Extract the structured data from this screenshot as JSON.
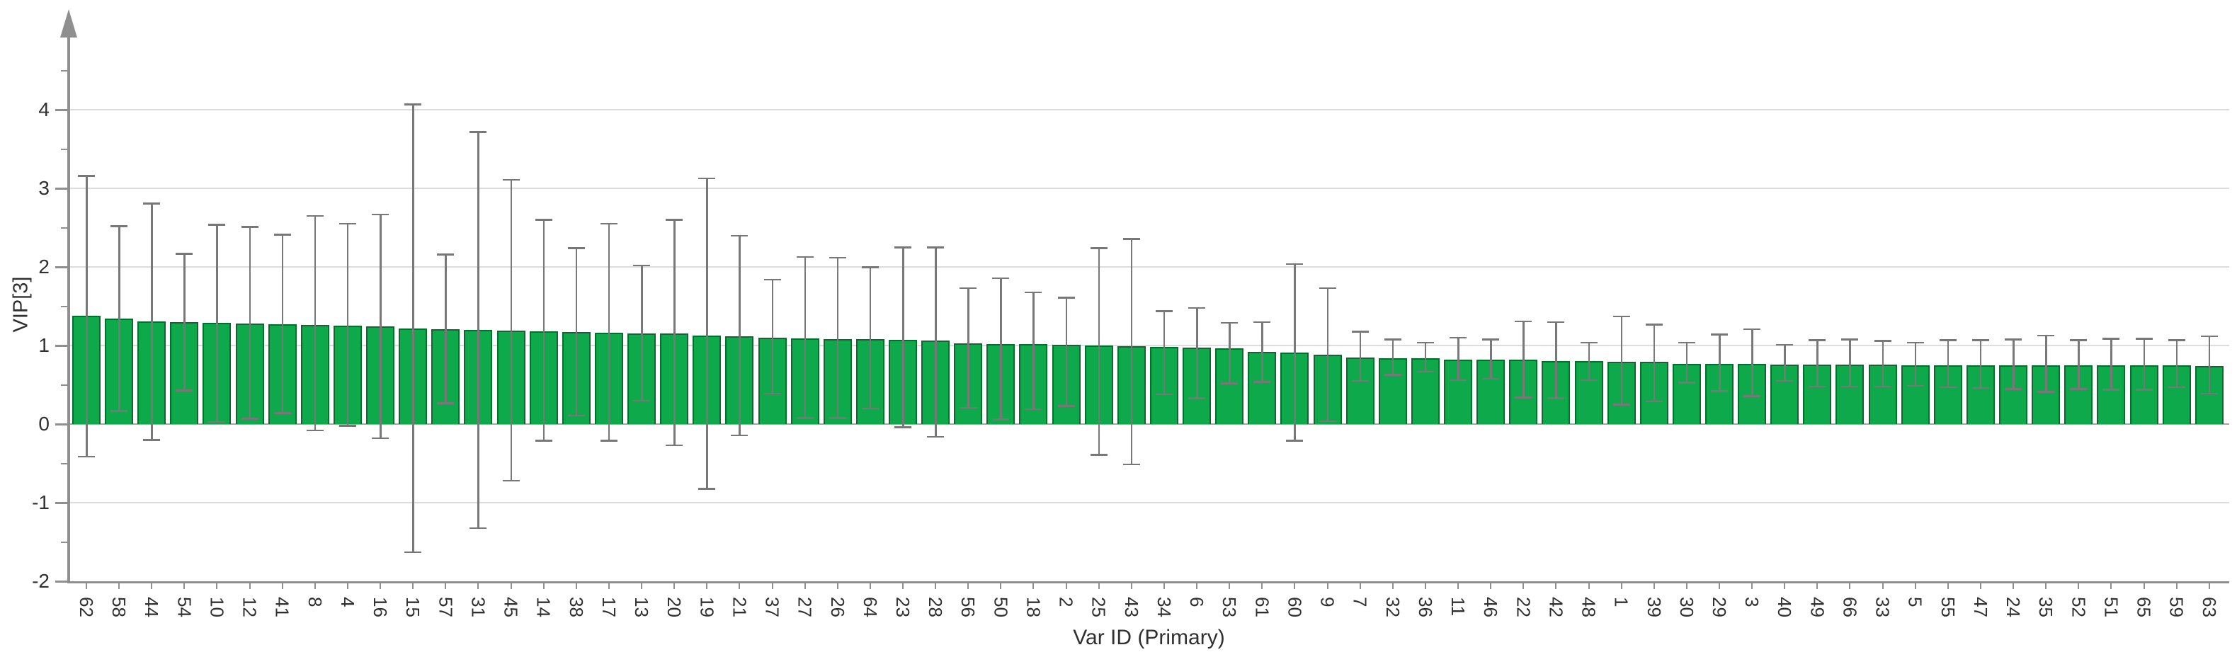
{
  "chart_data": {
    "type": "bar",
    "title": "",
    "xlabel": "Var ID (Primary)",
    "ylabel": "VIP[3]",
    "ylim": [
      -2,
      4.7
    ],
    "yticks": [
      4,
      3,
      2,
      1,
      0,
      -1,
      -2
    ],
    "yticks_minor": [
      4.5,
      3.5,
      2.5,
      1.5,
      0.5,
      -0.5,
      -1.5
    ],
    "grid": "horizontal major gridlines only",
    "legend_position": "none",
    "bar_orientation": "vertical",
    "error_bars": "asymmetric confidence intervals (jack-knife style)",
    "categories": [
      "62",
      "58",
      "44",
      "54",
      "10",
      "12",
      "41",
      "8",
      "4",
      "16",
      "15",
      "57",
      "31",
      "45",
      "14",
      "38",
      "17",
      "13",
      "20",
      "19",
      "21",
      "37",
      "27",
      "26",
      "64",
      "23",
      "28",
      "56",
      "50",
      "18",
      "2",
      "25",
      "43",
      "34",
      "6",
      "53",
      "61",
      "60",
      "9",
      "7",
      "32",
      "36",
      "11",
      "46",
      "22",
      "42",
      "48",
      "1",
      "39",
      "30",
      "29",
      "3",
      "40",
      "49",
      "66",
      "33",
      "5",
      "55",
      "47",
      "24",
      "35",
      "52",
      "51",
      "65",
      "59",
      "63"
    ],
    "series": [
      {
        "name": "VIP[3]",
        "values": [
          1.38,
          1.34,
          1.31,
          1.3,
          1.29,
          1.28,
          1.27,
          1.26,
          1.25,
          1.24,
          1.22,
          1.21,
          1.2,
          1.19,
          1.18,
          1.17,
          1.16,
          1.15,
          1.15,
          1.13,
          1.12,
          1.1,
          1.09,
          1.08,
          1.08,
          1.07,
          1.06,
          1.03,
          1.02,
          1.02,
          1.01,
          1.0,
          0.99,
          0.98,
          0.97,
          0.96,
          0.92,
          0.91,
          0.88,
          0.85,
          0.84,
          0.84,
          0.82,
          0.82,
          0.82,
          0.8,
          0.8,
          0.79,
          0.79,
          0.77,
          0.77,
          0.77,
          0.76,
          0.76,
          0.76,
          0.76,
          0.75,
          0.75,
          0.75,
          0.75,
          0.75,
          0.75,
          0.75,
          0.75,
          0.75,
          0.74
        ]
      },
      {
        "name": "error_low",
        "values": [
          -0.41,
          0.17,
          -0.2,
          0.43,
          0.03,
          0.07,
          0.14,
          -0.08,
          -0.02,
          -0.18,
          -1.63,
          0.27,
          -1.32,
          -0.72,
          -0.21,
          0.11,
          -0.21,
          0.3,
          -0.27,
          -0.82,
          -0.14,
          0.39,
          0.08,
          0.08,
          0.2,
          -0.04,
          -0.16,
          0.21,
          0.06,
          0.19,
          0.23,
          -0.39,
          -0.51,
          0.38,
          0.33,
          0.52,
          0.54,
          -0.21,
          0.04,
          0.55,
          0.63,
          0.67,
          0.56,
          0.58,
          0.34,
          0.33,
          0.56,
          0.25,
          0.29,
          0.53,
          0.42,
          0.36,
          0.55,
          0.48,
          0.48,
          0.48,
          0.49,
          0.47,
          0.46,
          0.45,
          0.41,
          0.45,
          0.44,
          0.44,
          0.47,
          0.39
        ]
      },
      {
        "name": "error_high",
        "values": [
          3.16,
          2.52,
          2.81,
          2.17,
          2.54,
          2.51,
          2.41,
          2.65,
          2.55,
          2.67,
          4.07,
          2.16,
          3.72,
          3.11,
          2.6,
          2.24,
          2.55,
          2.02,
          2.6,
          3.13,
          2.4,
          1.84,
          2.13,
          2.12,
          2.0,
          2.25,
          2.25,
          1.73,
          1.86,
          1.68,
          1.61,
          2.24,
          2.36,
          1.44,
          1.48,
          1.29,
          1.3,
          2.04,
          1.73,
          1.18,
          1.08,
          1.04,
          1.1,
          1.08,
          1.31,
          1.3,
          1.04,
          1.37,
          1.27,
          1.04,
          1.14,
          1.21,
          1.01,
          1.07,
          1.08,
          1.06,
          1.04,
          1.07,
          1.07,
          1.08,
          1.13,
          1.07,
          1.09,
          1.09,
          1.07,
          1.12
        ]
      }
    ],
    "colors": {
      "bar_fill": "#0EA94B",
      "bar_border": "#0A6B30",
      "error_bar": "#787878",
      "gridline": "#DCDCDC",
      "zero_line": "#A6A6A6",
      "axis": "#8F8F8F",
      "text": "#303030",
      "background": "#FFFFFF"
    }
  }
}
